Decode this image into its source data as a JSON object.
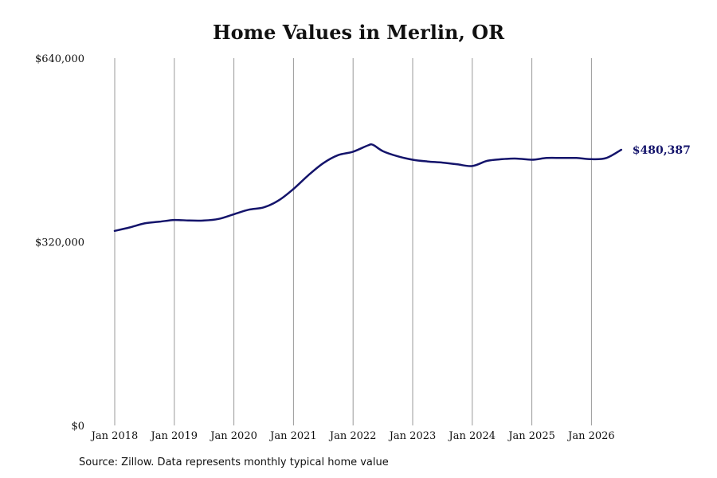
{
  "chart_data": {
    "type": "line",
    "title": "Home Values in Merlin, OR",
    "source": "Source: Zillow. Data represents monthly typical home value",
    "y_ticks": [
      {
        "value": 0,
        "label": "$0"
      },
      {
        "value": 320000,
        "label": "$320,000"
      },
      {
        "value": 640000,
        "label": "$640,000"
      }
    ],
    "x_ticks": [
      {
        "value": "2018-01",
        "label": "Jan 2018"
      },
      {
        "value": "2019-01",
        "label": "Jan 2019"
      },
      {
        "value": "2020-01",
        "label": "Jan 2020"
      },
      {
        "value": "2021-01",
        "label": "Jan 2021"
      },
      {
        "value": "2022-01",
        "label": "Jan 2022"
      },
      {
        "value": "2023-01",
        "label": "Jan 2023"
      },
      {
        "value": "2024-01",
        "label": "Jan 2024"
      },
      {
        "value": "2025-01",
        "label": "Jan 2025"
      },
      {
        "value": "2026-01",
        "label": "Jan 2026"
      }
    ],
    "ylim": [
      0,
      640000
    ],
    "grid": "vertical",
    "line_color": "#14146b",
    "end_label": "$480,387",
    "series": [
      {
        "x": [
          "2018-01",
          "2018-04",
          "2018-07",
          "2018-10",
          "2019-01",
          "2019-04",
          "2019-07",
          "2019-10",
          "2020-01",
          "2020-04",
          "2020-07",
          "2020-10",
          "2021-01",
          "2021-04",
          "2021-07",
          "2021-10",
          "2022-01",
          "2022-04",
          "2022-05",
          "2022-07",
          "2022-10",
          "2023-01",
          "2023-04",
          "2023-07",
          "2023-10",
          "2024-01",
          "2024-04",
          "2024-07",
          "2024-10",
          "2025-01",
          "2025-04",
          "2025-07",
          "2025-10",
          "2026-01",
          "2026-04",
          "2026-07"
        ],
        "values": [
          339000,
          345000,
          352000,
          355000,
          358000,
          357000,
          357000,
          360000,
          368000,
          376000,
          380000,
          392000,
          412000,
          436000,
          457000,
          471000,
          477000,
          488000,
          489000,
          478000,
          469000,
          463000,
          460000,
          458000,
          455000,
          452000,
          461000,
          464000,
          465000,
          463000,
          466000,
          466000,
          466000,
          464000,
          466000,
          480387
        ]
      }
    ]
  }
}
